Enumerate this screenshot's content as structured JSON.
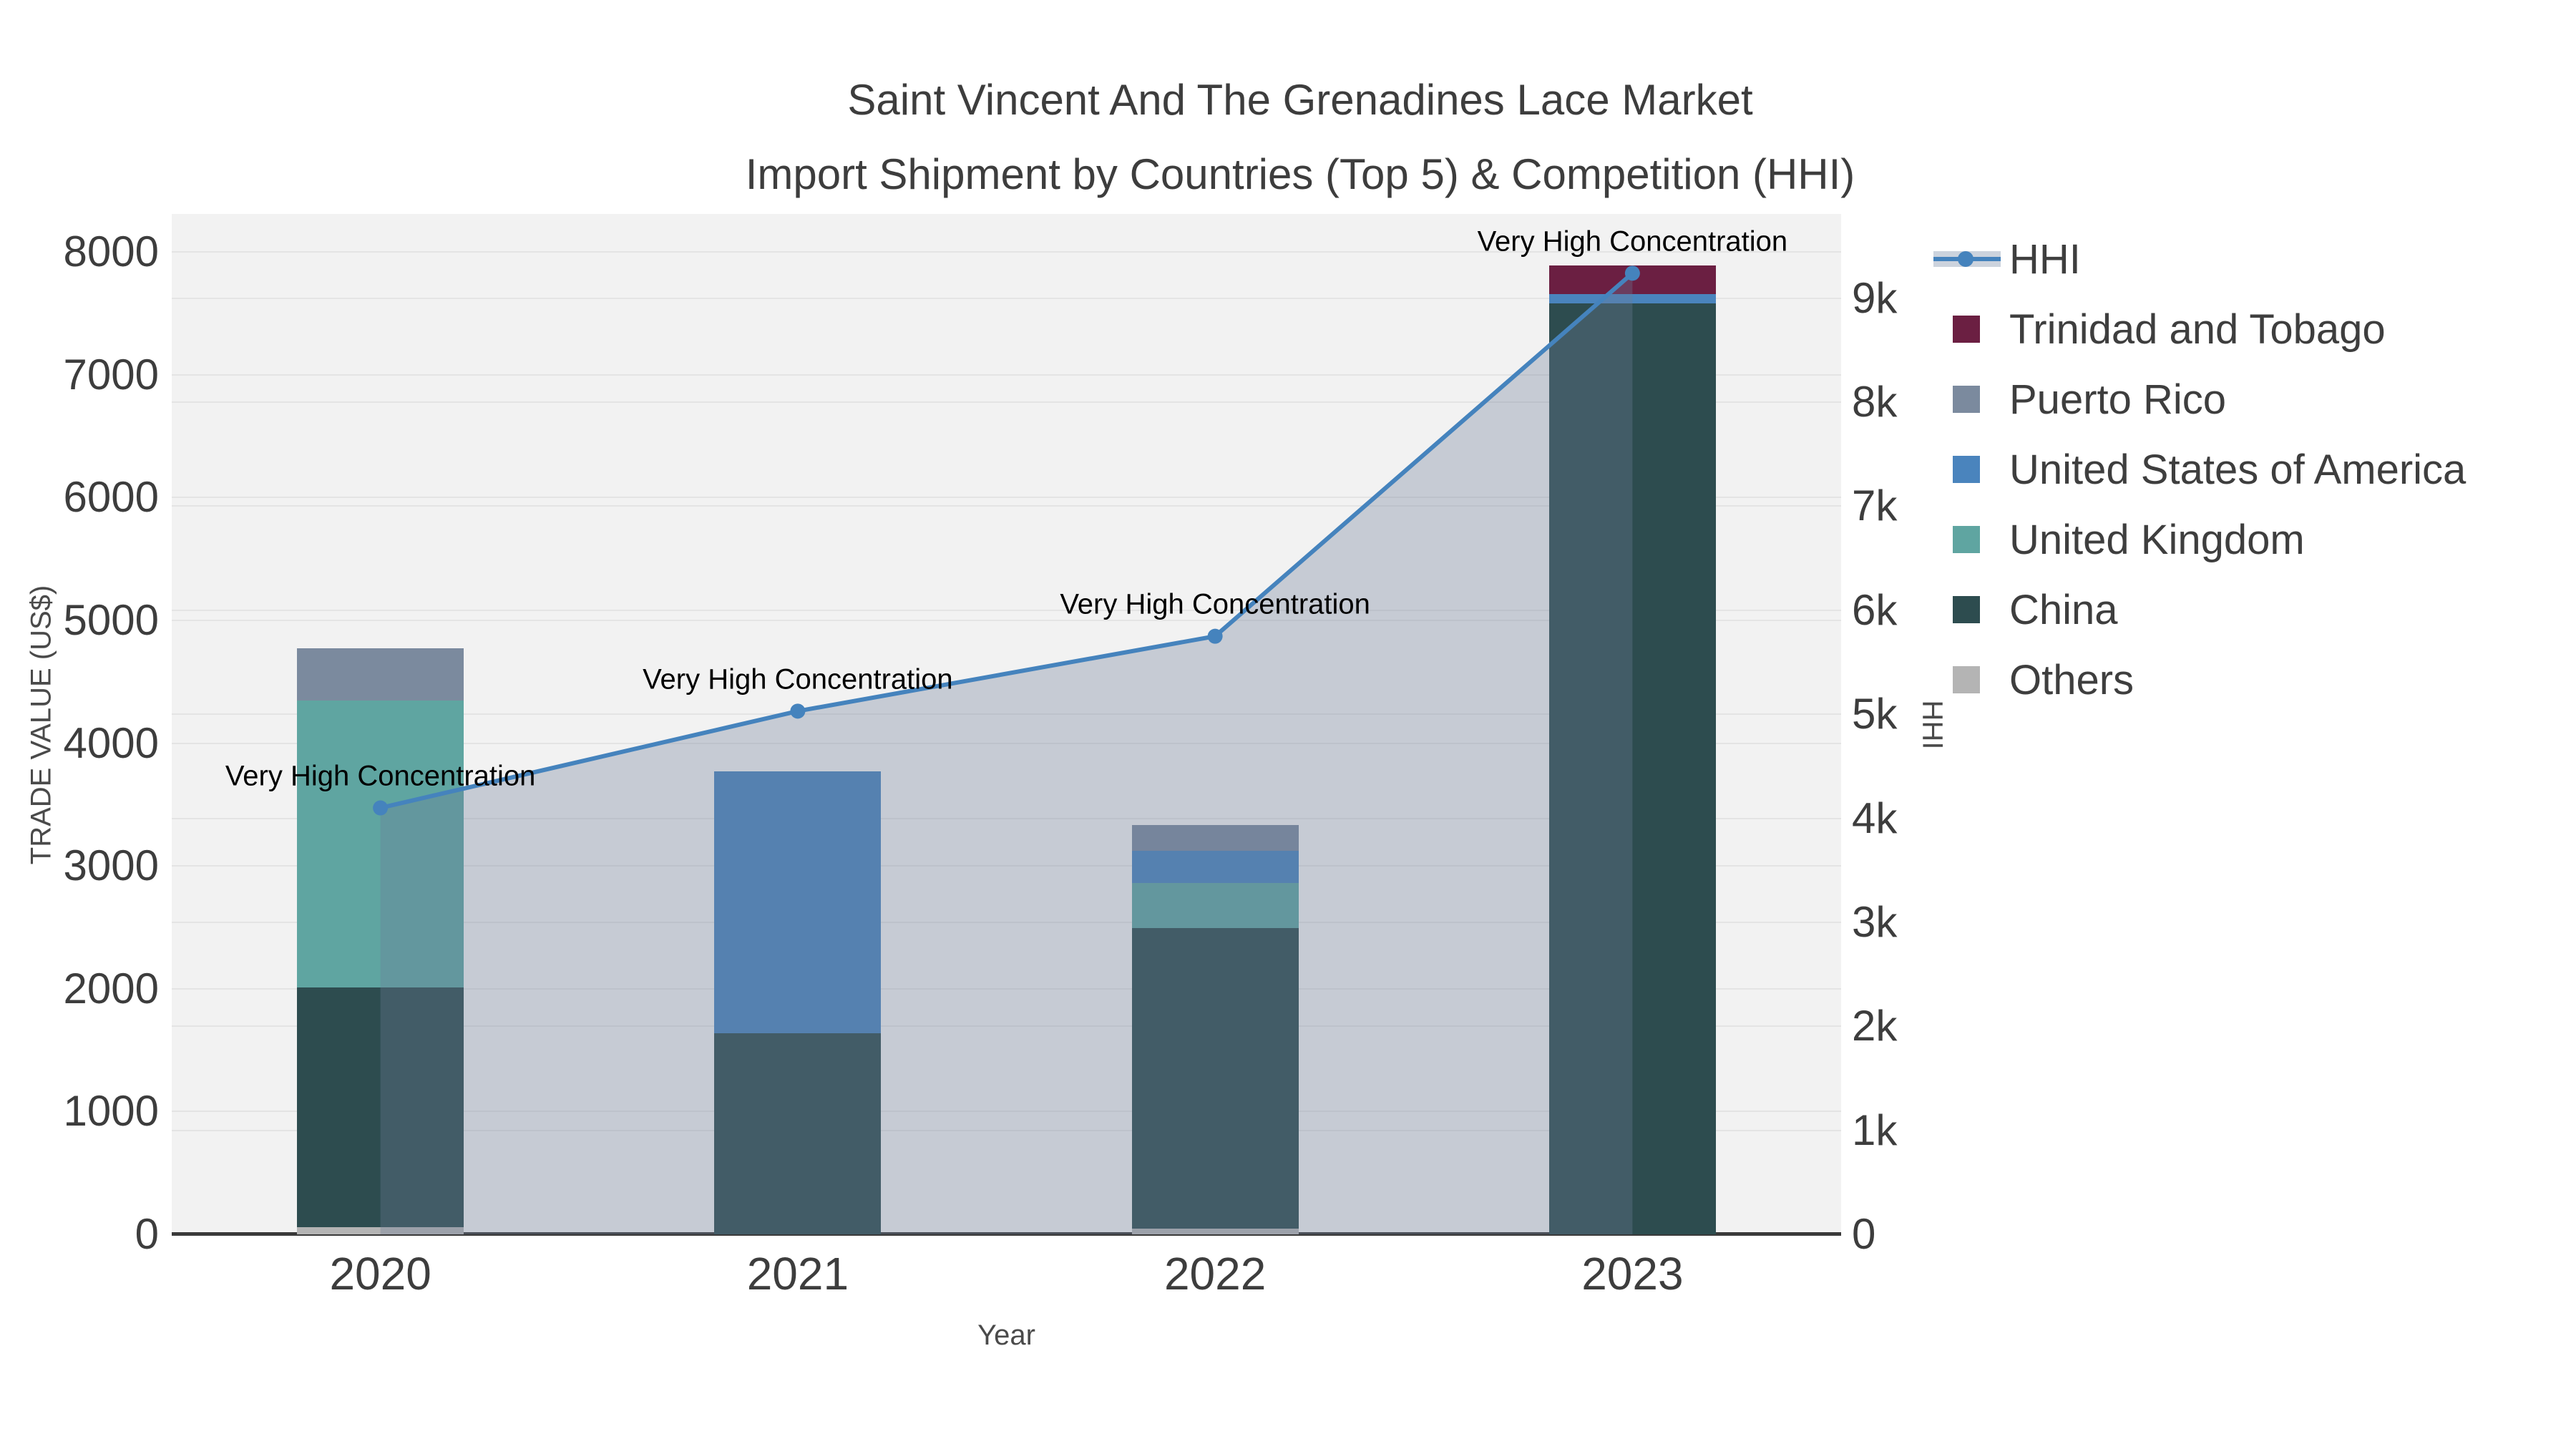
{
  "title": {
    "line1": "Saint Vincent And The Grenadines Lace Market",
    "line2": "Import Shipment by Countries (Top 5) & Competition (HHI)"
  },
  "axes": {
    "x": {
      "title": "Year",
      "categories": [
        "2020",
        "2021",
        "2022",
        "2023"
      ]
    },
    "left": {
      "title": "TRADE VALUE (US$)",
      "range_top": 8310,
      "ticks": [
        {
          "v": 0,
          "label": "0"
        },
        {
          "v": 1000,
          "label": "1000"
        },
        {
          "v": 2000,
          "label": "2000"
        },
        {
          "v": 3000,
          "label": "3000"
        },
        {
          "v": 4000,
          "label": "4000"
        },
        {
          "v": 5000,
          "label": "5000"
        },
        {
          "v": 6000,
          "label": "6000"
        },
        {
          "v": 7000,
          "label": "7000"
        },
        {
          "v": 8000,
          "label": "8000"
        }
      ]
    },
    "right": {
      "title": "HHI",
      "range_top": 9810,
      "ticks": [
        {
          "v": 0,
          "label": "0"
        },
        {
          "v": 1000,
          "label": "1k"
        },
        {
          "v": 2000,
          "label": "2k"
        },
        {
          "v": 3000,
          "label": "3k"
        },
        {
          "v": 4000,
          "label": "4k"
        },
        {
          "v": 5000,
          "label": "5k"
        },
        {
          "v": 6000,
          "label": "6k"
        },
        {
          "v": 7000,
          "label": "7k"
        },
        {
          "v": 8000,
          "label": "8k"
        },
        {
          "v": 9000,
          "label": "9k"
        }
      ]
    }
  },
  "chart_data": {
    "type": "combo-stacked-bar-line",
    "categories": [
      "2020",
      "2021",
      "2022",
      "2023"
    ],
    "bar_stack_order": [
      "Others",
      "China",
      "United Kingdom",
      "United States of America",
      "Puerto Rico",
      "Trinidad and Tobago"
    ],
    "series": [
      {
        "name": "Others",
        "type": "bar",
        "color": "#b4b4b4",
        "values": [
          60,
          0,
          45,
          0
        ]
      },
      {
        "name": "China",
        "type": "bar",
        "color": "#2d4c4f",
        "values": [
          1950,
          1640,
          2450,
          7580
        ]
      },
      {
        "name": "United Kingdom",
        "type": "bar",
        "color": "#5fa5a1",
        "values": [
          2340,
          0,
          365,
          0
        ]
      },
      {
        "name": "United States of America",
        "type": "bar",
        "color": "#4a84bd",
        "values": [
          0,
          2130,
          265,
          75
        ]
      },
      {
        "name": "Puerto Rico",
        "type": "bar",
        "color": "#7b8a9e",
        "values": [
          425,
          0,
          210,
          0
        ]
      },
      {
        "name": "Trinidad and Tobago",
        "type": "bar",
        "color": "#6b1f42",
        "values": [
          0,
          0,
          0,
          235
        ]
      }
    ],
    "line_series": {
      "name": "HHI",
      "axis": "right",
      "color": "#4583bd",
      "fill_color": "rgba(110,124,152,0.33)",
      "values": [
        4100,
        5030,
        5750,
        9240
      ]
    },
    "bar_totals": [
      4775,
      3770,
      3335,
      7890
    ],
    "annotations": [
      {
        "text": "Very High Concentration",
        "category_index": 0
      },
      {
        "text": "Very High Concentration",
        "category_index": 1
      },
      {
        "text": "Very High Concentration",
        "category_index": 2
      },
      {
        "text": "Very High Concentration",
        "category_index": 3
      }
    ],
    "layout_hints": {
      "grid": true,
      "legend_position": "right",
      "plot_bg": "#f2f2f2"
    }
  },
  "legend": {
    "items": [
      {
        "label": "HHI",
        "type": "line",
        "color": "#4583bd",
        "band_color": "#ccd3dd"
      },
      {
        "label": "Trinidad and Tobago",
        "type": "swatch",
        "color": "#6b1f42"
      },
      {
        "label": "Puerto Rico",
        "type": "swatch",
        "color": "#7b8a9e"
      },
      {
        "label": "United States of America",
        "type": "swatch",
        "color": "#4a84bd"
      },
      {
        "label": "United Kingdom",
        "type": "swatch",
        "color": "#5fa5a1"
      },
      {
        "label": "China",
        "type": "swatch",
        "color": "#2d4c4f"
      },
      {
        "label": "Others",
        "type": "swatch",
        "color": "#b4b4b4"
      }
    ]
  },
  "colors": {
    "plot_bg": "#f2f2f2",
    "grid": "#e4e4e4",
    "axis_line": "#3a3a3a",
    "title_text": "#3d3d3d",
    "tick_text": "#3d3d3d",
    "axis_title_text": "#4a4a4a",
    "legend_text": "#3e3e3e",
    "annotation_text": "#000000"
  }
}
